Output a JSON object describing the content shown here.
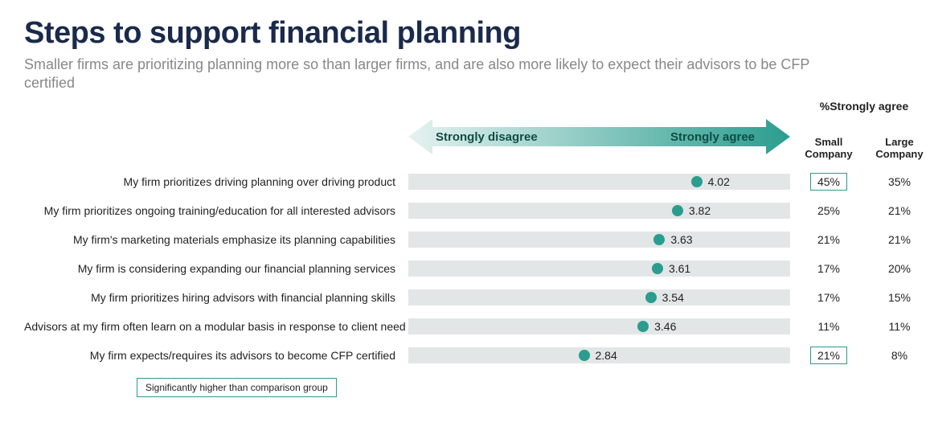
{
  "title": "Steps to support financial planning",
  "subtitle": "Smaller firms are prioritizing planning more so than larger firms, and are also more likely to expect their advisors to be CFP certified",
  "scale": {
    "left_label": "Strongly disagree",
    "right_label": "Strongly agree",
    "min": 1,
    "max": 5,
    "gradient_from": "#e6f2f0",
    "gradient_to": "#2a9d8f"
  },
  "columns": {
    "super": "%Strongly agree",
    "small": "Small Company",
    "large": "Large Company"
  },
  "dot_color": "#2a9d8f",
  "bar_bg": "#e2e6e6",
  "highlight_border": "#2a9d8f",
  "rows": [
    {
      "label": "My firm prioritizes driving planning over driving product",
      "value": 4.02,
      "small": "45%",
      "large": "35%",
      "small_hl": true,
      "large_hl": false
    },
    {
      "label": "My firm prioritizes ongoing training/education for all interested advisors",
      "value": 3.82,
      "small": "25%",
      "large": "21%",
      "small_hl": false,
      "large_hl": false
    },
    {
      "label": "My firm's marketing materials emphasize its planning capabilities",
      "value": 3.63,
      "small": "21%",
      "large": "21%",
      "small_hl": false,
      "large_hl": false
    },
    {
      "label": "My firm is considering expanding our financial planning services",
      "value": 3.61,
      "small": "17%",
      "large": "20%",
      "small_hl": false,
      "large_hl": false
    },
    {
      "label": "My firm prioritizes hiring advisors with financial planning skills",
      "value": 3.54,
      "small": "17%",
      "large": "15%",
      "small_hl": false,
      "large_hl": false
    },
    {
      "label": "Advisors at my firm often learn on a modular basis in response to client need",
      "value": 3.46,
      "small": "11%",
      "large": "11%",
      "small_hl": false,
      "large_hl": false
    },
    {
      "label": "My firm expects/requires its advisors to become CFP certified",
      "value": 2.84,
      "small": "21%",
      "large": "8%",
      "small_hl": true,
      "large_hl": false
    }
  ],
  "legend": "Significantly higher than comparison group"
}
